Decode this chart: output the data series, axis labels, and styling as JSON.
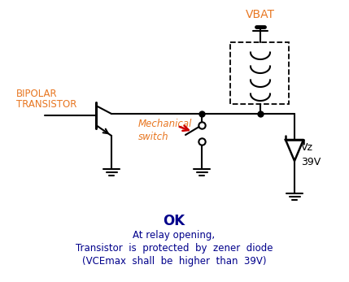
{
  "title_ok": "OK",
  "subtitle1": "At relay opening,",
  "subtitle2": "Transistor  is  protected  by  zener  diode",
  "subtitle3": "(VCEmax  shall  be  higher  than  39V)",
  "vbat_label": "VBAT",
  "bipolar_label1": "BIPOLAR",
  "bipolar_label2": "TRANSISTOR",
  "mech_label1": "Mechanical",
  "mech_label2": "switch",
  "vz_label": "Vz",
  "v39_label": "39V",
  "bg_color": "#ffffff",
  "line_color": "#000000",
  "orange_color": "#E87722",
  "red_color": "#cc0000",
  "blue_color": "#00008b",
  "fig_w": 4.29,
  "fig_h": 3.47,
  "dpi": 100
}
